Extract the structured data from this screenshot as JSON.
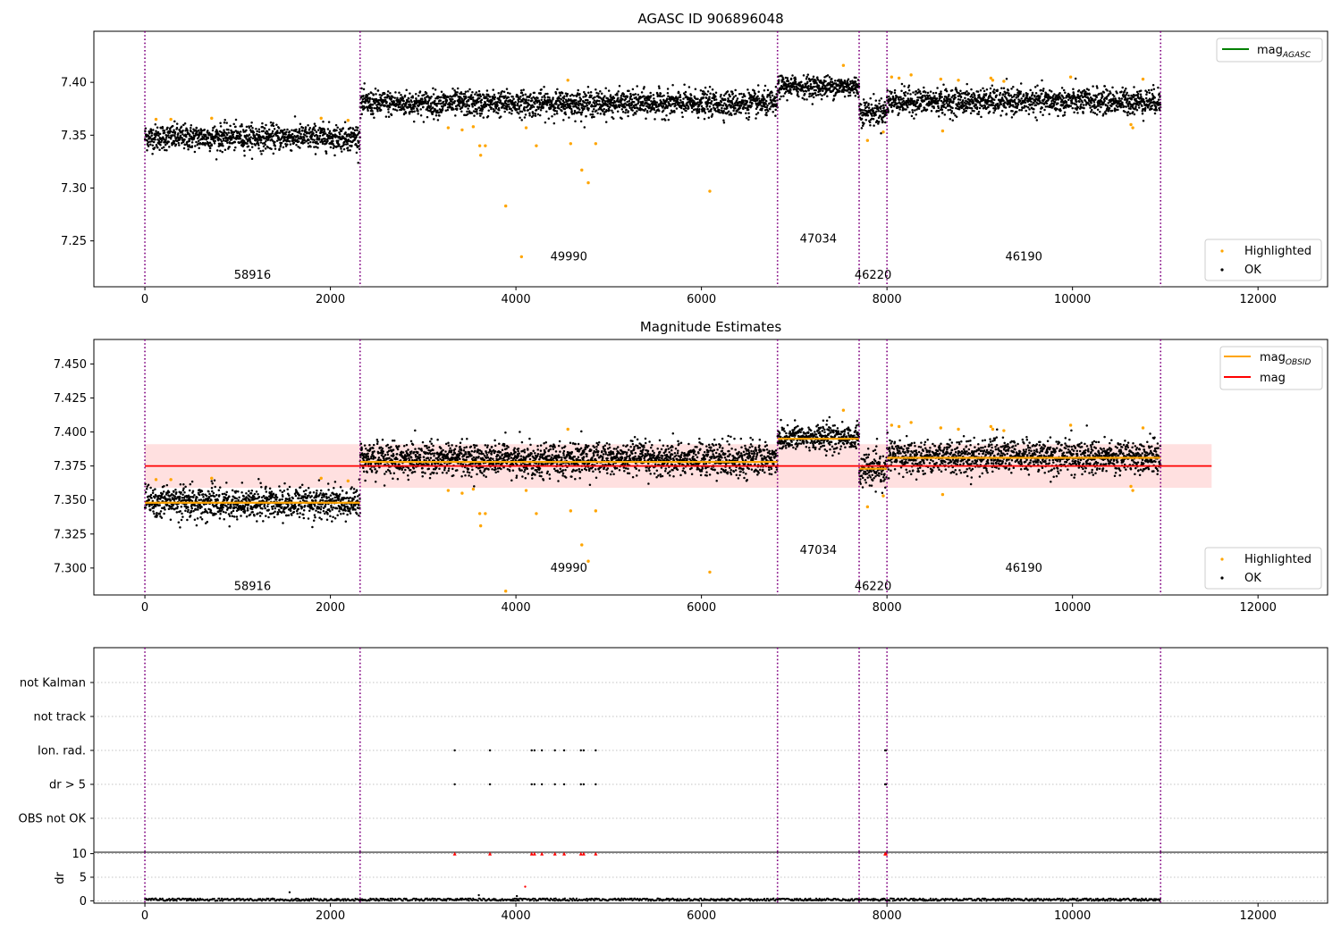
{
  "figure": {
    "title_top": "AGASC ID 906896048",
    "title_mid": "Magnitude Estimates",
    "ok_label": "OK",
    "highlighted_label": "Highlighted",
    "mag_agasc_label": "mag",
    "mag_agasc_sub": "AGASC",
    "mag_obsid_label": "mag",
    "mag_obsid_sub": "OBSID",
    "mag_label": "mag",
    "dr_ylabel": "dr"
  },
  "colors": {
    "ok": "#000000",
    "highlighted": "#ffa500",
    "mag_agasc": "#008000",
    "mag_obsid": "#ffa500",
    "mag": "#ff0000",
    "mag_band": "#ffcccc",
    "obs_boundary": "#800080",
    "flag_red": "#ff0000",
    "grid": "#b0b0b0"
  },
  "chart_data": [
    {
      "type": "scatter",
      "title": "AGASC ID 906896048",
      "xlim": [
        -550,
        12750
      ],
      "ylim": [
        7.2066,
        7.4483
      ],
      "x_ticks": [
        0,
        2000,
        4000,
        6000,
        8000,
        10000,
        12000
      ],
      "y_ticks": [
        7.25,
        7.3,
        7.35,
        7.4
      ],
      "y_tick_labels": [
        "7.25",
        "7.30",
        "7.35",
        "7.40"
      ],
      "obs_boundaries": [
        0,
        2320,
        6820,
        7700,
        8000,
        10950
      ],
      "observations": [
        {
          "obsid": "58916",
          "x_start": 0,
          "x_end": 2320,
          "mean": 7.348,
          "spread": 0.006,
          "label_y": 7.2175
        },
        {
          "obsid": "49990",
          "x_start": 2320,
          "x_end": 6820,
          "mean": 7.38,
          "spread": 0.006,
          "label_y": 7.235
        },
        {
          "obsid": "47034",
          "x_start": 6820,
          "x_end": 7700,
          "mean": 7.396,
          "spread": 0.005,
          "label_y": 7.252
        },
        {
          "obsid": "46220",
          "x_start": 7700,
          "x_end": 8000,
          "mean": 7.372,
          "spread": 0.006,
          "label_y": 7.2175
        },
        {
          "obsid": "46190",
          "x_start": 8000,
          "x_end": 10950,
          "mean": 7.382,
          "spread": 0.006,
          "label_y": 7.235
        }
      ],
      "highlighted_points": [
        [
          120,
          7.365
        ],
        [
          280,
          7.365
        ],
        [
          720,
          7.366
        ],
        [
          1900,
          7.366
        ],
        [
          2190,
          7.364
        ],
        [
          3270,
          7.357
        ],
        [
          3420,
          7.355
        ],
        [
          3540,
          7.358
        ],
        [
          3610,
          7.34
        ],
        [
          3620,
          7.331
        ],
        [
          3670,
          7.34
        ],
        [
          3890,
          7.283
        ],
        [
          4060,
          7.235
        ],
        [
          4110,
          7.357
        ],
        [
          4220,
          7.34
        ],
        [
          4560,
          7.402
        ],
        [
          4590,
          7.342
        ],
        [
          4710,
          7.317
        ],
        [
          4780,
          7.305
        ],
        [
          4860,
          7.342
        ],
        [
          6090,
          7.297
        ],
        [
          7530,
          7.416
        ],
        [
          7790,
          7.345
        ],
        [
          7960,
          7.353
        ],
        [
          8050,
          7.405
        ],
        [
          8130,
          7.404
        ],
        [
          8260,
          7.407
        ],
        [
          8580,
          7.403
        ],
        [
          8600,
          7.354
        ],
        [
          8770,
          7.402
        ],
        [
          9120,
          7.404
        ],
        [
          9140,
          7.402
        ],
        [
          9260,
          7.401
        ],
        [
          9980,
          7.405
        ],
        [
          10630,
          7.36
        ],
        [
          10650,
          7.357
        ],
        [
          10760,
          7.403
        ]
      ],
      "legend": [
        "mag_AGASC",
        "Highlighted",
        "OK"
      ]
    },
    {
      "type": "scatter",
      "title": "Magnitude Estimates",
      "xlim": [
        -550,
        12750
      ],
      "ylim": [
        7.2802,
        7.468
      ],
      "x_ticks": [
        0,
        2000,
        4000,
        6000,
        8000,
        10000,
        12000
      ],
      "y_ticks": [
        7.3,
        7.325,
        7.35,
        7.375,
        7.4,
        7.425,
        7.45
      ],
      "y_tick_labels": [
        "7.300",
        "7.325",
        "7.350",
        "7.375",
        "7.400",
        "7.425",
        "7.450"
      ],
      "obs_boundaries": [
        0,
        2320,
        6820,
        7700,
        8000,
        10950
      ],
      "mag": 7.375,
      "mag_band": [
        7.359,
        7.391
      ],
      "mag_band_x": [
        0,
        11500
      ],
      "mag_obsid_lines": [
        {
          "x_start": 0,
          "x_end": 2320,
          "y": 7.348
        },
        {
          "x_start": 2320,
          "x_end": 6820,
          "y": 7.378
        },
        {
          "x_start": 6820,
          "x_end": 7700,
          "y": 7.395
        },
        {
          "x_start": 7700,
          "x_end": 8000,
          "y": 7.373
        },
        {
          "x_start": 8000,
          "x_end": 10950,
          "y": 7.381
        }
      ],
      "obs_label_positions": [
        {
          "obsid": "58916",
          "y": 7.2865
        },
        {
          "obsid": "49990",
          "y": 7.3
        },
        {
          "obsid": "47034",
          "y": 7.313
        },
        {
          "obsid": "46220",
          "y": 7.2865
        },
        {
          "obsid": "46190",
          "y": 7.3
        }
      ],
      "legend": [
        "mag_OBSID",
        "mag",
        "Highlighted",
        "OK"
      ]
    },
    {
      "type": "scatter",
      "title": "",
      "xlim": [
        -550,
        12750
      ],
      "flag_categories": [
        "not Kalman",
        "not track",
        "Ion. rad.",
        "dr > 5",
        "OBS not OK"
      ],
      "flag_points": {
        "Ion. rad.": [
          3340,
          3720,
          4170,
          4200,
          4280,
          4420,
          4520,
          4700,
          4730,
          4860,
          7980,
          7990
        ],
        "dr > 5": [
          3340,
          3720,
          4170,
          4200,
          4280,
          4420,
          4520,
          4700,
          4730,
          4860,
          7980,
          7990
        ]
      },
      "obs_boundaries": [
        0,
        2320,
        6820,
        7700,
        8000,
        10950
      ]
    },
    {
      "type": "scatter",
      "title": "",
      "xlim": [
        -550,
        12750
      ],
      "ylim": [
        -0.5,
        10.3
      ],
      "ylabel": "dr",
      "x_ticks": [
        0,
        2000,
        4000,
        6000,
        8000,
        10000,
        12000
      ],
      "y_ticks": [
        0,
        5,
        10
      ],
      "y_tick_labels": [
        "0",
        "5",
        "10"
      ],
      "capped_points_at_10": [
        3340,
        3720,
        4170,
        4200,
        4280,
        4420,
        4520,
        4700,
        4730,
        4860,
        7980,
        7990
      ],
      "outliers": [
        [
          1560,
          1.8
        ],
        [
          3600,
          1.2
        ],
        [
          4100,
          3.0
        ],
        [
          4010,
          1.0
        ]
      ],
      "typical_range": [
        0,
        0.5
      ],
      "obs_boundaries": [
        0,
        2320,
        6820,
        7700,
        8000,
        10950
      ]
    }
  ]
}
